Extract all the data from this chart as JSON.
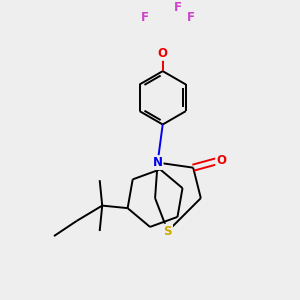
{
  "bg_color": "#eeeeee",
  "atom_colors": {
    "C": "#000000",
    "N": "#0000ee",
    "O": "#ee0000",
    "S": "#ccaa00",
    "F": "#cc44cc"
  },
  "bond_color": "#000000",
  "lw": 1.4,
  "fs": 8.5
}
